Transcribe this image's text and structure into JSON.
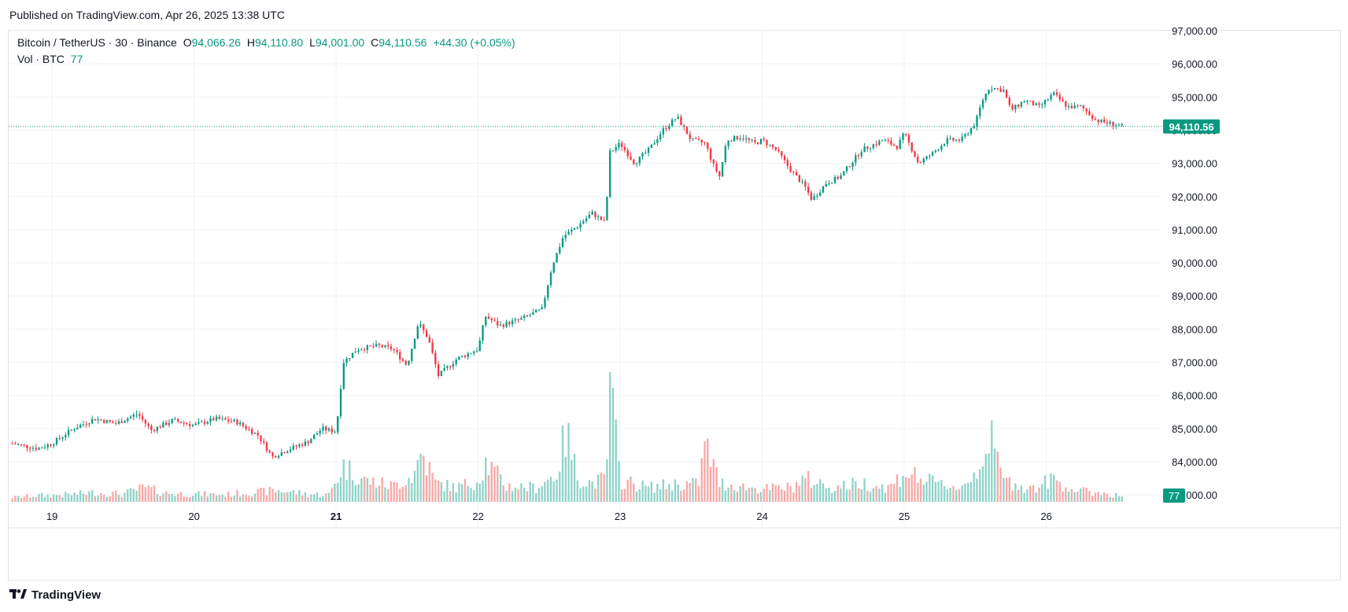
{
  "header": {
    "published": "Published on TradingView.com, Apr 26, 2025 13:38 UTC"
  },
  "legend": {
    "symbol": "Bitcoin / TetherUS · 30 · Binance",
    "o_label": "O",
    "o_value": "94,066.26",
    "h_label": "H",
    "h_value": "94,110.80",
    "l_label": "L",
    "l_value": "94,001.00",
    "c_label": "C",
    "c_value": "94,110.56",
    "change": "+44.30 (+0.05%)",
    "vol_label": "Vol · BTC",
    "vol_value": "77"
  },
  "footer": {
    "brand": "TradingView"
  },
  "colors": {
    "up": "#089981",
    "down": "#f23645",
    "vol_up": "#8fd3c8",
    "vol_down": "#f7a9a7",
    "grid": "#f0f3fa",
    "text": "#131722"
  },
  "chart_data": {
    "type": "candlestick",
    "title": "Bitcoin / TetherUS · 30 · Binance",
    "y_axis": {
      "range": [
        83700,
        97200
      ],
      "ticks": [
        "97,000.00",
        "96,000.00",
        "95,000.00",
        "94,000.00",
        "93,000.00",
        "92,000.00",
        "91,000.00",
        "90,000.00",
        "89,000.00",
        "88,000.00",
        "87,000.00",
        "86,000.00",
        "85,000.00",
        "84,000.00",
        "83,000.00"
      ],
      "tick_values": [
        97000,
        96000,
        95000,
        94000,
        93000,
        92000,
        91000,
        90000,
        89000,
        88000,
        87000,
        86000,
        85000,
        84000,
        83000
      ]
    },
    "x_axis": {
      "ticks": [
        "19",
        "20",
        "21",
        "22",
        "23",
        "24",
        "25",
        "26"
      ],
      "tick_days": [
        19,
        20,
        21,
        22,
        23,
        24,
        25,
        26
      ],
      "bold": [
        "21"
      ],
      "range_days": [
        18.7,
        26.75
      ]
    },
    "last_price": {
      "label": "94,110.56",
      "value": 94110.56
    },
    "last_volume": {
      "label": "77"
    },
    "price_path": [
      [
        18.72,
        84550
      ],
      [
        18.9,
        84400
      ],
      [
        19.0,
        84550
      ],
      [
        19.15,
        85000
      ],
      [
        19.3,
        85300
      ],
      [
        19.45,
        85150
      ],
      [
        19.6,
        85450
      ],
      [
        19.7,
        84950
      ],
      [
        19.85,
        85250
      ],
      [
        20.0,
        85100
      ],
      [
        20.15,
        85300
      ],
      [
        20.3,
        85200
      ],
      [
        20.45,
        84800
      ],
      [
        20.55,
        84150
      ],
      [
        20.65,
        84350
      ],
      [
        20.8,
        84600
      ],
      [
        20.9,
        85000
      ],
      [
        21.0,
        84900
      ],
      [
        21.05,
        87000
      ],
      [
        21.15,
        87400
      ],
      [
        21.3,
        87500
      ],
      [
        21.4,
        87400
      ],
      [
        21.5,
        86900
      ],
      [
        21.58,
        88200
      ],
      [
        21.65,
        87700
      ],
      [
        21.72,
        86600
      ],
      [
        21.85,
        87100
      ],
      [
        22.0,
        87400
      ],
      [
        22.05,
        88400
      ],
      [
        22.15,
        88100
      ],
      [
        22.3,
        88300
      ],
      [
        22.45,
        88600
      ],
      [
        22.52,
        89900
      ],
      [
        22.6,
        90800
      ],
      [
        22.7,
        91100
      ],
      [
        22.8,
        91500
      ],
      [
        22.9,
        91200
      ],
      [
        22.92,
        93300
      ],
      [
        23.0,
        93600
      ],
      [
        23.1,
        93000
      ],
      [
        23.2,
        93400
      ],
      [
        23.3,
        94000
      ],
      [
        23.4,
        94400
      ],
      [
        23.5,
        93700
      ],
      [
        23.6,
        93600
      ],
      [
        23.65,
        93000
      ],
      [
        23.7,
        92600
      ],
      [
        23.75,
        93700
      ],
      [
        23.85,
        93800
      ],
      [
        23.95,
        93600
      ],
      [
        24.0,
        93700
      ],
      [
        24.1,
        93400
      ],
      [
        24.2,
        92800
      ],
      [
        24.3,
        92300
      ],
      [
        24.35,
        91900
      ],
      [
        24.45,
        92400
      ],
      [
        24.55,
        92600
      ],
      [
        24.7,
        93400
      ],
      [
        24.85,
        93700
      ],
      [
        24.95,
        93500
      ],
      [
        25.0,
        93900
      ],
      [
        25.1,
        93000
      ],
      [
        25.2,
        93300
      ],
      [
        25.3,
        93700
      ],
      [
        25.4,
        93700
      ],
      [
        25.5,
        94200
      ],
      [
        25.55,
        94900
      ],
      [
        25.6,
        95300
      ],
      [
        25.7,
        95200
      ],
      [
        25.75,
        94600
      ],
      [
        25.85,
        94900
      ],
      [
        25.95,
        94700
      ],
      [
        26.05,
        95100
      ],
      [
        26.15,
        94700
      ],
      [
        26.25,
        94700
      ],
      [
        26.35,
        94300
      ],
      [
        26.45,
        94200
      ],
      [
        26.55,
        94100
      ]
    ],
    "volume_path": [
      [
        18.72,
        60
      ],
      [
        18.9,
        90
      ],
      [
        19.1,
        100
      ],
      [
        19.3,
        130
      ],
      [
        19.5,
        110
      ],
      [
        19.65,
        200
      ],
      [
        19.8,
        120
      ],
      [
        20.0,
        110
      ],
      [
        20.2,
        100
      ],
      [
        20.4,
        130
      ],
      [
        20.6,
        160
      ],
      [
        20.8,
        110
      ],
      [
        20.95,
        100
      ],
      [
        21.05,
        500
      ],
      [
        21.2,
        300
      ],
      [
        21.4,
        220
      ],
      [
        21.55,
        380
      ],
      [
        21.6,
        700
      ],
      [
        21.7,
        260
      ],
      [
        21.85,
        200
      ],
      [
        22.0,
        300
      ],
      [
        22.05,
        560
      ],
      [
        22.2,
        220
      ],
      [
        22.4,
        200
      ],
      [
        22.55,
        380
      ],
      [
        22.62,
        960
      ],
      [
        22.7,
        340
      ],
      [
        22.8,
        260
      ],
      [
        22.9,
        320
      ],
      [
        22.93,
        1560
      ],
      [
        23.0,
        300
      ],
      [
        23.2,
        200
      ],
      [
        23.4,
        250
      ],
      [
        23.55,
        250
      ],
      [
        23.6,
        800
      ],
      [
        23.7,
        260
      ],
      [
        23.9,
        200
      ],
      [
        24.0,
        180
      ],
      [
        24.2,
        200
      ],
      [
        24.3,
        320
      ],
      [
        24.5,
        200
      ],
      [
        24.7,
        260
      ],
      [
        24.9,
        200
      ],
      [
        25.0,
        420
      ],
      [
        25.2,
        260
      ],
      [
        25.4,
        200
      ],
      [
        25.5,
        400
      ],
      [
        25.6,
        900
      ],
      [
        25.7,
        300
      ],
      [
        25.9,
        180
      ],
      [
        26.05,
        320
      ],
      [
        26.2,
        160
      ],
      [
        26.4,
        120
      ],
      [
        26.55,
        77
      ]
    ]
  }
}
